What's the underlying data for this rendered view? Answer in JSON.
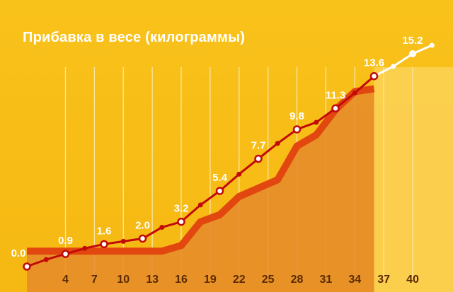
{
  "chart_data": {
    "type": "line",
    "title": "Прибавка в весе (килограммы)",
    "xlabel": "",
    "ylabel": "",
    "xticks": [
      4,
      7,
      10,
      13,
      16,
      19,
      22,
      25,
      28,
      31,
      34,
      37,
      40
    ],
    "xlim": [
      0,
      41
    ],
    "ylim": [
      0,
      16
    ],
    "grid": "vertical",
    "series": [
      {
        "x": [
          0,
          2,
          4,
          6,
          8,
          10,
          12,
          14,
          16,
          18,
          20,
          22,
          24,
          26,
          28,
          30,
          32,
          34,
          36
        ],
        "y": [
          0.0,
          0.5,
          0.9,
          1.3,
          1.6,
          1.8,
          2.0,
          2.8,
          3.2,
          4.4,
          5.4,
          6.6,
          7.7,
          8.8,
          9.8,
          10.3,
          11.3,
          12.4,
          13.6
        ],
        "color": "#c10a0a"
      },
      {
        "x": [
          36,
          38,
          40,
          42
        ],
        "y": [
          13.6,
          14.3,
          15.2,
          15.8
        ],
        "color": "#ffffff"
      },
      {
        "x": [
          0,
          2,
          4,
          6,
          8,
          10,
          12,
          14,
          16,
          18,
          20,
          22,
          24,
          26,
          28,
          30,
          32,
          34,
          36
        ],
        "y": [
          1.1,
          1.1,
          1.1,
          1.1,
          1.1,
          1.1,
          1.1,
          1.1,
          1.5,
          3.2,
          3.7,
          5.0,
          5.6,
          6.2,
          8.6,
          9.4,
          11.2,
          12.5,
          12.7
        ],
        "color": "#e2470f"
      }
    ],
    "data_labels": [
      {
        "x": 0,
        "y": 0.0,
        "text": "0.0"
      },
      {
        "x": 4,
        "y": 0.9,
        "text": "0.9"
      },
      {
        "x": 8,
        "y": 1.6,
        "text": "1.6"
      },
      {
        "x": 12,
        "y": 2.0,
        "text": "2.0"
      },
      {
        "x": 16,
        "y": 3.2,
        "text": "3.2"
      },
      {
        "x": 20,
        "y": 5.4,
        "text": "5.4"
      },
      {
        "x": 24,
        "y": 7.7,
        "text": "7.7"
      },
      {
        "x": 28,
        "y": 9.8,
        "text": "9.8"
      },
      {
        "x": 32,
        "y": 11.3,
        "text": "11.3"
      },
      {
        "x": 36,
        "y": 13.6,
        "text": "13.6"
      },
      {
        "x": 40,
        "y": 15.2,
        "text": "15.2"
      }
    ],
    "shaded_region": {
      "x_from": 36,
      "x_to": 41
    }
  },
  "colors": {
    "background": "#f9c21b",
    "grid": "#fbe49a",
    "area": "#e58a2c",
    "future": "#fcd257",
    "tick_text": "#5a2a00"
  }
}
